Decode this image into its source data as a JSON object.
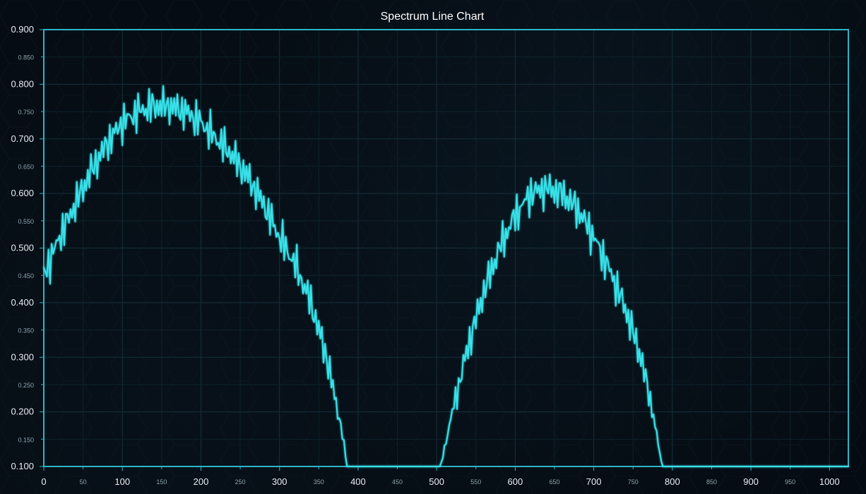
{
  "chart_data": {
    "type": "line",
    "title": "Spectrum Line Chart",
    "xlabel": "",
    "ylabel": "",
    "xlim": [
      0,
      1024
    ],
    "ylim": [
      0.1,
      0.9
    ],
    "major_x_ticks": [
      "0",
      "100",
      "200",
      "300",
      "400",
      "500",
      "600",
      "700",
      "800",
      "900",
      "1000"
    ],
    "minor_x_ticks": [
      "50",
      "150",
      "250",
      "350",
      "450",
      "550",
      "650",
      "750",
      "850",
      "950"
    ],
    "major_y_ticks": [
      "0.100",
      "0.200",
      "0.300",
      "0.400",
      "0.500",
      "0.600",
      "0.700",
      "0.800",
      "0.900"
    ],
    "minor_y_ticks": [
      "0.150",
      "0.250",
      "0.350",
      "0.450",
      "0.550",
      "0.650",
      "0.750",
      "0.850"
    ],
    "grid": true,
    "colors": {
      "background": "#050b12",
      "plot_border": "#2bb6c8",
      "grid_major": "#17303b",
      "grid_minor": "#0f232c",
      "line": "#38e2ea",
      "title_text": "#ffffff",
      "tick_text": "#e6eef2",
      "minor_tick_text": "#8ea2ab"
    },
    "series": [
      {
        "envelope_points": [
          [
            0,
            0.45
          ],
          [
            20,
            0.52
          ],
          [
            40,
            0.58
          ],
          [
            60,
            0.64
          ],
          [
            80,
            0.69
          ],
          [
            100,
            0.73
          ],
          [
            120,
            0.75
          ],
          [
            140,
            0.76
          ],
          [
            160,
            0.76
          ],
          [
            180,
            0.75
          ],
          [
            200,
            0.73
          ],
          [
            220,
            0.7
          ],
          [
            240,
            0.67
          ],
          [
            260,
            0.63
          ],
          [
            280,
            0.58
          ],
          [
            300,
            0.52
          ],
          [
            320,
            0.47
          ],
          [
            340,
            0.4
          ],
          [
            360,
            0.3
          ],
          [
            380,
            0.16
          ],
          [
            386,
            0.1
          ],
          [
            505,
            0.1
          ],
          [
            520,
            0.2
          ],
          [
            540,
            0.32
          ],
          [
            560,
            0.42
          ],
          [
            580,
            0.5
          ],
          [
            600,
            0.56
          ],
          [
            620,
            0.6
          ],
          [
            640,
            0.61
          ],
          [
            660,
            0.6
          ],
          [
            680,
            0.57
          ],
          [
            700,
            0.52
          ],
          [
            720,
            0.46
          ],
          [
            740,
            0.39
          ],
          [
            760,
            0.3
          ],
          [
            775,
            0.2
          ],
          [
            787,
            0.1
          ],
          [
            1024,
            0.1
          ]
        ],
        "noise_amplitude_in_peaks": 0.045
      }
    ]
  }
}
